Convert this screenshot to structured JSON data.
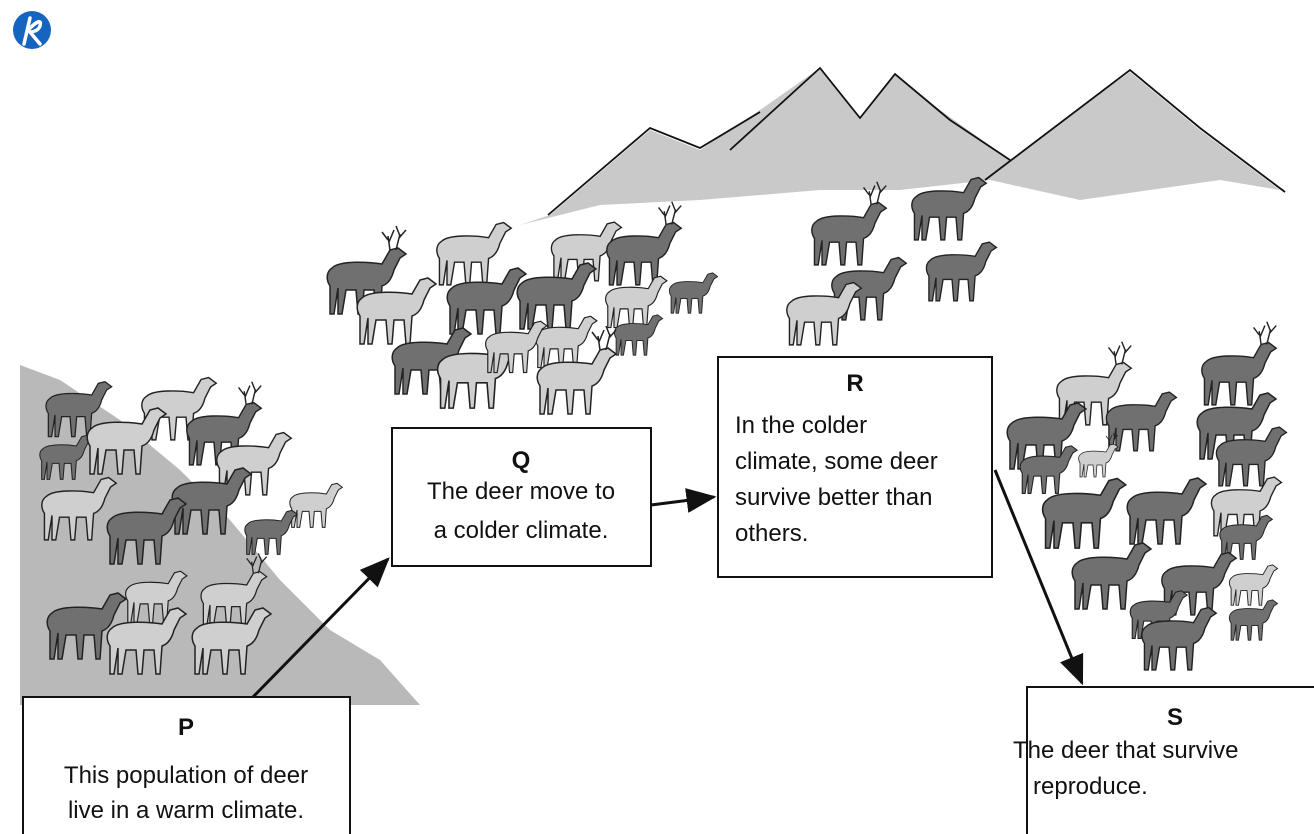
{
  "nodes": [
    {
      "label": "P",
      "lines": [
        "This population of deer",
        "live in a warm climate."
      ]
    },
    {
      "label": "Q",
      "lines": [
        "The deer move to",
        "a colder climate."
      ]
    },
    {
      "label": "R",
      "lines": [
        "In the colder",
        "climate, some deer",
        "survive better than",
        "others."
      ]
    },
    {
      "label": "S",
      "lines": [
        "The deer that survive",
        "reproduce."
      ]
    }
  ]
}
